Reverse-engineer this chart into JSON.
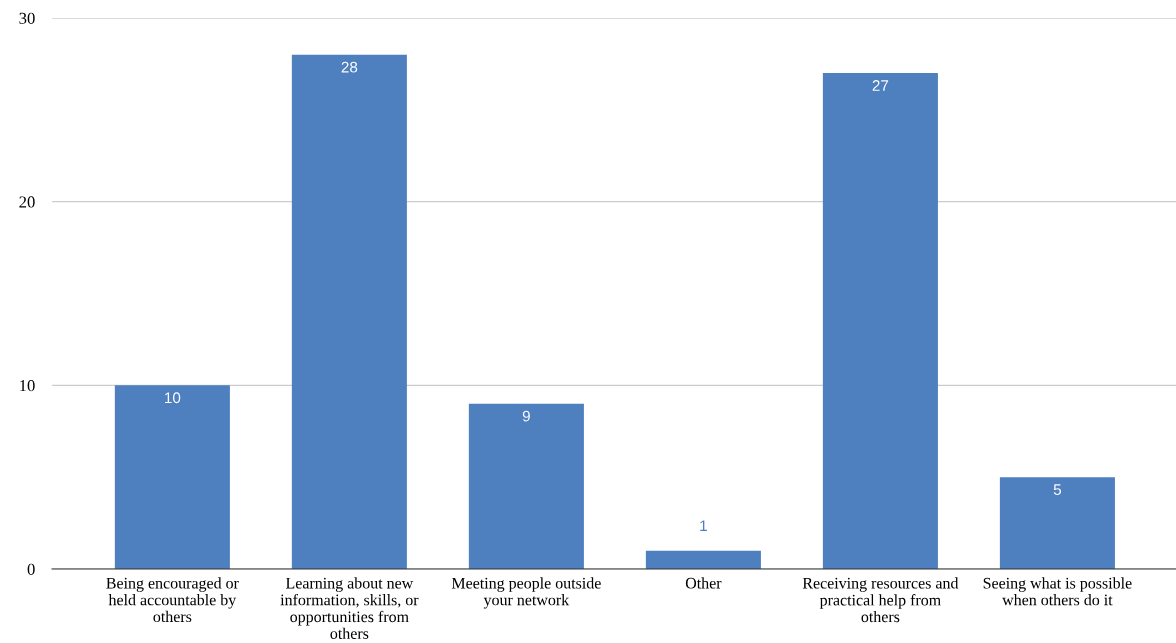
{
  "chart_data": {
    "type": "bar",
    "categories": [
      "Being encouraged or\nheld accountable by\nothers",
      "Learning about new\ninformation, skills, or\nopportunities from\nothers",
      "Meeting people outside\nyour network",
      "Other",
      "Receiving resources and\npractical help from\nothers",
      "Seeing what is possible\nwhen others do it"
    ],
    "values": [
      10,
      28,
      9,
      1,
      27,
      5
    ],
    "color": "#4e7fbf",
    "ylim": [
      0,
      30
    ],
    "yticks": [
      0,
      10,
      20,
      30
    ],
    "grid": "y",
    "data_labels": true
  }
}
